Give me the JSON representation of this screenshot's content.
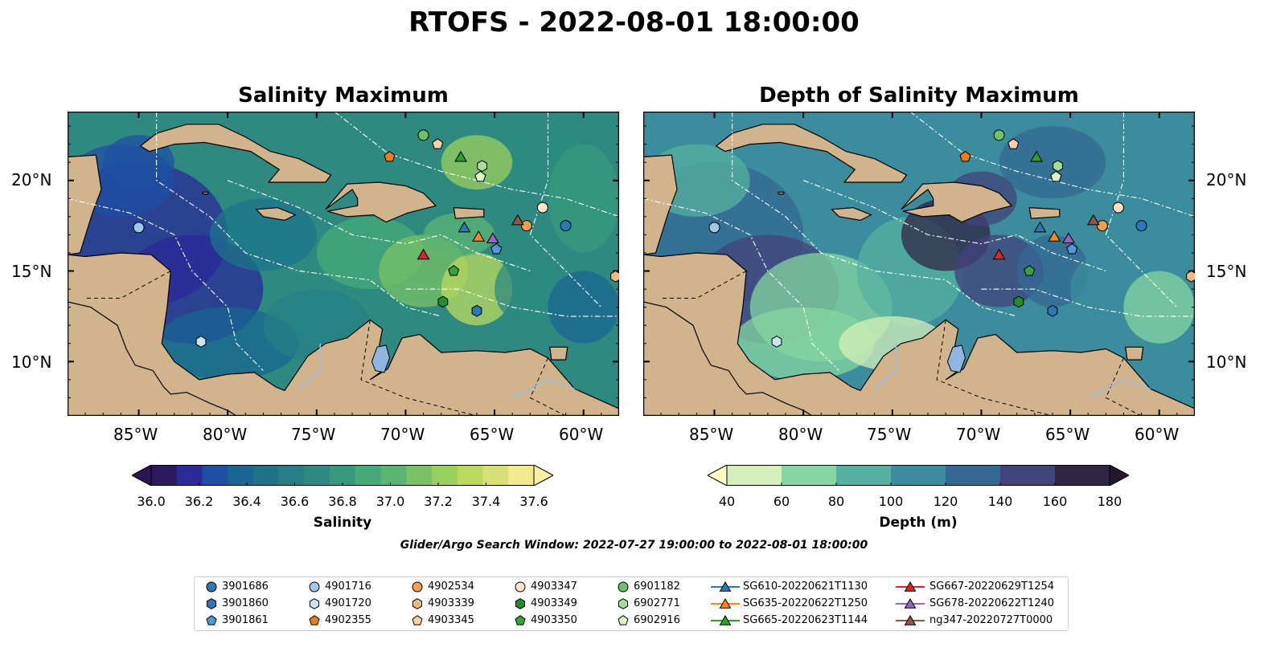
{
  "title": "RTOFS - 2022-08-01 18:00:00",
  "panels": [
    {
      "title": "Salinity Maximum",
      "colorbar": {
        "label": "Salinity",
        "ticks": [
          "36.0",
          "36.2",
          "36.4",
          "36.6",
          "36.8",
          "37.0",
          "37.2",
          "37.4",
          "37.6"
        ],
        "levels": [
          "#2b1a5e",
          "#2b2a9a",
          "#1f4fa2",
          "#1a6592",
          "#1d7489",
          "#267f84",
          "#2e8a80",
          "#379a7c",
          "#45a978",
          "#5bb472",
          "#79c165",
          "#99cf5d",
          "#bbd95e",
          "#d6e174",
          "#f3ea8f"
        ],
        "extend_low": "#2a1650",
        "extend_high": "#fbf0a2"
      }
    },
    {
      "title": "Depth of Salinity Maximum",
      "colorbar": {
        "label": "Depth (m)",
        "ticks": [
          "40",
          "60",
          "80",
          "100",
          "120",
          "140",
          "160",
          "180"
        ],
        "levels": [
          "#d4efb9",
          "#86d6a0",
          "#55b2a0",
          "#3b8c9c",
          "#346893",
          "#41437b",
          "#2f2545"
        ],
        "extend_low": "#fdfcc3",
        "extend_high": "#24172f"
      }
    }
  ],
  "axes": {
    "lon_ticks": [
      "85°W",
      "80°W",
      "75°W",
      "70°W",
      "65°W",
      "60°W"
    ],
    "lat_ticks": [
      "20°N",
      "15°N",
      "10°N"
    ],
    "lon_range": [
      -89,
      -58
    ],
    "lat_range": [
      7,
      23.8
    ]
  },
  "search_window": "Glider/Argo Search Window: 2022-07-27 19:00:00 to 2022-08-01 18:00:00",
  "legend": [
    {
      "label": "3901686",
      "marker": "circle",
      "color": "#2a78b8"
    },
    {
      "label": "3901860",
      "marker": "hexagon",
      "color": "#2a78b8"
    },
    {
      "label": "3901861",
      "marker": "pentagon",
      "color": "#4e9ad2"
    },
    {
      "label": "4901716",
      "marker": "circle",
      "color": "#9ec9ea"
    },
    {
      "label": "4901720",
      "marker": "hexagon",
      "color": "#cce3f5"
    },
    {
      "label": "4902355",
      "marker": "pentagon",
      "color": "#f07d19"
    },
    {
      "label": "4902534",
      "marker": "circle",
      "color": "#f99d4a"
    },
    {
      "label": "4903339",
      "marker": "hexagon",
      "color": "#fdb77a"
    },
    {
      "label": "4903345",
      "marker": "pentagon",
      "color": "#fdd0a7"
    },
    {
      "label": "4903347",
      "marker": "circle",
      "color": "#fde3c8"
    },
    {
      "label": "4903349",
      "marker": "hexagon",
      "color": "#1f8f2c"
    },
    {
      "label": "4903350",
      "marker": "pentagon",
      "color": "#36a43b"
    },
    {
      "label": "6901182",
      "marker": "circle",
      "color": "#6dc36a"
    },
    {
      "label": "6902771",
      "marker": "hexagon",
      "color": "#a5dd9a"
    },
    {
      "label": "6902916",
      "marker": "pentagon",
      "color": "#d7f4cd"
    },
    {
      "label": "SG610-20220621T1130",
      "marker": "triangle",
      "color": "#2a78b8"
    },
    {
      "label": "SG635-20220622T1250",
      "marker": "triangle",
      "color": "#f7871e"
    },
    {
      "label": "SG665-20220623T1144",
      "marker": "triangle",
      "color": "#2ca02c"
    },
    {
      "label": "SG667-20220629T1254",
      "marker": "triangle",
      "color": "#d62728"
    },
    {
      "label": "SG678-20220622T1240",
      "marker": "triangle",
      "color": "#9467bd"
    },
    {
      "label": "ng347-20220727T0000",
      "marker": "triangle",
      "color": "#8c564b"
    }
  ],
  "observations": [
    {
      "id": "4901716",
      "lon": -85.0,
      "lat": 17.4
    },
    {
      "id": "4901720",
      "lon": -81.5,
      "lat": 11.1
    },
    {
      "id": "4902355",
      "lon": -70.9,
      "lat": 21.3
    },
    {
      "id": "6901182",
      "lon": -69.0,
      "lat": 22.5
    },
    {
      "id": "4903345",
      "lon": -68.2,
      "lat": 22.0
    },
    {
      "id": "SG665-20220623T1144",
      "lon": -66.9,
      "lat": 21.3
    },
    {
      "id": "6902771",
      "lon": -65.7,
      "lat": 20.8
    },
    {
      "id": "6902916",
      "lon": -65.8,
      "lat": 20.2
    },
    {
      "id": "4903347",
      "lon": -62.3,
      "lat": 18.5
    },
    {
      "id": "3901686",
      "lon": -61.0,
      "lat": 17.5
    },
    {
      "id": "4902534",
      "lon": -63.2,
      "lat": 17.5
    },
    {
      "id": "ng347-20220727T0000",
      "lon": -63.7,
      "lat": 17.8
    },
    {
      "id": "SG610-20220621T1130",
      "lon": -66.7,
      "lat": 17.4
    },
    {
      "id": "SG635-20220622T1250",
      "lon": -65.9,
      "lat": 16.9
    },
    {
      "id": "SG678-20220622T1240",
      "lon": -65.1,
      "lat": 16.8
    },
    {
      "id": "3901861",
      "lon": -64.9,
      "lat": 16.2
    },
    {
      "id": "SG667-20220629T1254",
      "lon": -69.0,
      "lat": 15.9
    },
    {
      "id": "4903350",
      "lon": -67.3,
      "lat": 15.0
    },
    {
      "id": "4903349",
      "lon": -67.9,
      "lat": 13.3
    },
    {
      "id": "3901860",
      "lon": -66.0,
      "lat": 12.8
    },
    {
      "id": "4903339",
      "lon": -58.2,
      "lat": 14.7
    }
  ]
}
